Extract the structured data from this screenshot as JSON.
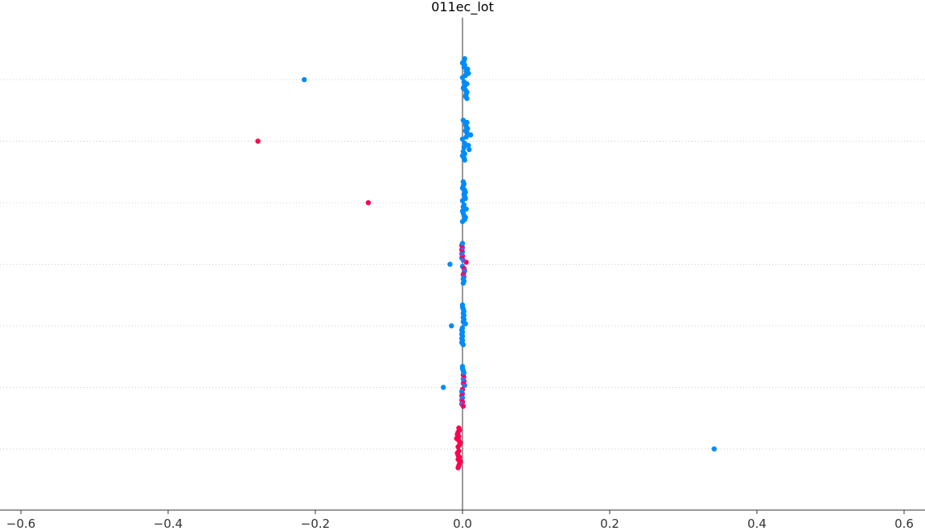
{
  "chart_data": {
    "type": "scatter",
    "title": "011ec_lot",
    "xlabel": "",
    "ylabel": "",
    "xlim": [
      -0.6,
      0.6
    ],
    "x_ticks": [
      "−0.6",
      "−0.4",
      "−0.2",
      "0.0",
      "0.2",
      "0.4",
      "0.6"
    ],
    "x_tick_values": [
      -0.6,
      -0.4,
      -0.2,
      0.0,
      0.2,
      0.4,
      0.6
    ],
    "reference_line_x": 0.0,
    "grid": "horizontal dotted at each row",
    "legend": "none",
    "colors": {
      "low": "#008bfb",
      "high": "#ff0051",
      "mid": "#7a4fd0",
      "zero_line": "#999999",
      "axis": "#333333",
      "grid": "#cccccc"
    },
    "rows": [
      {
        "points": [
          {
            "x": -0.215,
            "color": "low"
          },
          {
            "x": 0.0,
            "color": "low"
          },
          {
            "x": 0.002,
            "color": "low"
          },
          {
            "x": 0.004,
            "color": "low"
          },
          {
            "x": 0.006,
            "color": "low"
          },
          {
            "x": 0.008,
            "color": "low"
          },
          {
            "x": 0.003,
            "color": "low"
          },
          {
            "x": 0.005,
            "color": "low"
          },
          {
            "x": 0.001,
            "color": "low"
          },
          {
            "x": 0.007,
            "color": "low"
          },
          {
            "x": 0.004,
            "color": "low"
          },
          {
            "x": 0.002,
            "color": "low"
          },
          {
            "x": 0.006,
            "color": "low"
          },
          {
            "x": 0.003,
            "color": "low"
          },
          {
            "x": 0.005,
            "color": "low"
          },
          {
            "x": 0.0,
            "color": "low"
          },
          {
            "x": 0.004,
            "color": "low"
          },
          {
            "x": 0.002,
            "color": "low"
          },
          {
            "x": 0.006,
            "color": "low"
          },
          {
            "x": 0.003,
            "color": "low"
          }
        ]
      },
      {
        "points": [
          {
            "x": -0.278,
            "color": "high"
          },
          {
            "x": 0.0,
            "color": "low"
          },
          {
            "x": 0.003,
            "color": "low"
          },
          {
            "x": 0.005,
            "color": "low"
          },
          {
            "x": 0.008,
            "color": "low"
          },
          {
            "x": 0.011,
            "color": "low"
          },
          {
            "x": 0.002,
            "color": "low"
          },
          {
            "x": 0.006,
            "color": "low"
          },
          {
            "x": 0.009,
            "color": "low"
          },
          {
            "x": 0.004,
            "color": "low"
          },
          {
            "x": 0.001,
            "color": "low"
          },
          {
            "x": 0.007,
            "color": "low"
          },
          {
            "x": 0.003,
            "color": "low"
          },
          {
            "x": 0.005,
            "color": "low"
          },
          {
            "x": 0.0,
            "color": "low"
          },
          {
            "x": 0.004,
            "color": "low"
          },
          {
            "x": 0.002,
            "color": "low"
          },
          {
            "x": 0.006,
            "color": "low"
          },
          {
            "x": 0.003,
            "color": "low"
          },
          {
            "x": 0.001,
            "color": "low"
          }
        ]
      },
      {
        "points": [
          {
            "x": -0.128,
            "color": "high"
          },
          {
            "x": 0.0,
            "color": "low"
          },
          {
            "x": 0.002,
            "color": "low"
          },
          {
            "x": 0.004,
            "color": "low"
          },
          {
            "x": 0.001,
            "color": "low"
          },
          {
            "x": 0.003,
            "color": "low"
          },
          {
            "x": 0.005,
            "color": "low"
          },
          {
            "x": 0.002,
            "color": "low"
          },
          {
            "x": 0.0,
            "color": "low"
          },
          {
            "x": 0.004,
            "color": "low"
          },
          {
            "x": 0.001,
            "color": "low"
          },
          {
            "x": 0.003,
            "color": "low"
          },
          {
            "x": 0.002,
            "color": "low"
          },
          {
            "x": 0.0,
            "color": "low"
          },
          {
            "x": 0.004,
            "color": "low"
          },
          {
            "x": 0.001,
            "color": "low"
          },
          {
            "x": 0.003,
            "color": "low"
          },
          {
            "x": 0.002,
            "color": "low"
          },
          {
            "x": 0.0,
            "color": "low"
          },
          {
            "x": 0.001,
            "color": "low"
          }
        ]
      },
      {
        "points": [
          {
            "x": -0.017,
            "color": "low"
          },
          {
            "x": 0.005,
            "color": "high"
          },
          {
            "x": 0.0,
            "color": "low"
          },
          {
            "x": 0.001,
            "color": "mid"
          },
          {
            "x": 0.002,
            "color": "high"
          },
          {
            "x": -0.001,
            "color": "low"
          },
          {
            "x": 0.003,
            "color": "mid"
          },
          {
            "x": 0.0,
            "color": "high"
          },
          {
            "x": 0.002,
            "color": "low"
          },
          {
            "x": -0.001,
            "color": "mid"
          },
          {
            "x": 0.001,
            "color": "high"
          },
          {
            "x": 0.0,
            "color": "low"
          },
          {
            "x": 0.002,
            "color": "mid"
          },
          {
            "x": -0.001,
            "color": "high"
          },
          {
            "x": 0.001,
            "color": "low"
          },
          {
            "x": 0.0,
            "color": "mid"
          },
          {
            "x": 0.002,
            "color": "low"
          },
          {
            "x": -0.001,
            "color": "high"
          },
          {
            "x": 0.001,
            "color": "low"
          },
          {
            "x": 0.0,
            "color": "low"
          }
        ]
      },
      {
        "points": [
          {
            "x": -0.015,
            "color": "low"
          },
          {
            "x": 0.004,
            "color": "low"
          },
          {
            "x": 0.0,
            "color": "low"
          },
          {
            "x": 0.001,
            "color": "low"
          },
          {
            "x": -0.001,
            "color": "low"
          },
          {
            "x": 0.002,
            "color": "low"
          },
          {
            "x": 0.0,
            "color": "low"
          },
          {
            "x": 0.001,
            "color": "low"
          },
          {
            "x": -0.001,
            "color": "low"
          },
          {
            "x": 0.002,
            "color": "low"
          },
          {
            "x": 0.0,
            "color": "low"
          },
          {
            "x": 0.001,
            "color": "low"
          },
          {
            "x": -0.001,
            "color": "low"
          },
          {
            "x": 0.002,
            "color": "low"
          },
          {
            "x": 0.0,
            "color": "low"
          },
          {
            "x": 0.001,
            "color": "low"
          },
          {
            "x": -0.001,
            "color": "low"
          },
          {
            "x": 0.0,
            "color": "low"
          },
          {
            "x": 0.001,
            "color": "low"
          },
          {
            "x": 0.0,
            "color": "low"
          }
        ]
      },
      {
        "points": [
          {
            "x": -0.026,
            "color": "low"
          },
          {
            "x": 0.003,
            "color": "low"
          },
          {
            "x": 0.0,
            "color": "high"
          },
          {
            "x": 0.001,
            "color": "mid"
          },
          {
            "x": -0.001,
            "color": "low"
          },
          {
            "x": 0.002,
            "color": "high"
          },
          {
            "x": 0.0,
            "color": "mid"
          },
          {
            "x": 0.001,
            "color": "low"
          },
          {
            "x": -0.001,
            "color": "high"
          },
          {
            "x": 0.002,
            "color": "mid"
          },
          {
            "x": 0.0,
            "color": "low"
          },
          {
            "x": 0.001,
            "color": "high"
          },
          {
            "x": -0.001,
            "color": "mid"
          },
          {
            "x": 0.002,
            "color": "low"
          },
          {
            "x": 0.0,
            "color": "high"
          },
          {
            "x": 0.001,
            "color": "low"
          },
          {
            "x": -0.001,
            "color": "mid"
          },
          {
            "x": 0.0,
            "color": "low"
          },
          {
            "x": 0.001,
            "color": "high"
          },
          {
            "x": 0.0,
            "color": "low"
          }
        ]
      },
      {
        "points": [
          {
            "x": 0.342,
            "color": "low"
          },
          {
            "x": -0.006,
            "color": "high"
          },
          {
            "x": -0.005,
            "color": "high"
          },
          {
            "x": -0.004,
            "color": "high"
          },
          {
            "x": -0.007,
            "color": "high"
          },
          {
            "x": -0.003,
            "color": "high"
          },
          {
            "x": -0.006,
            "color": "high"
          },
          {
            "x": -0.005,
            "color": "high"
          },
          {
            "x": -0.004,
            "color": "high"
          },
          {
            "x": -0.008,
            "color": "high"
          },
          {
            "x": -0.006,
            "color": "high"
          },
          {
            "x": -0.005,
            "color": "high"
          },
          {
            "x": -0.003,
            "color": "high"
          },
          {
            "x": -0.007,
            "color": "high"
          },
          {
            "x": -0.004,
            "color": "high"
          },
          {
            "x": -0.006,
            "color": "high"
          },
          {
            "x": -0.005,
            "color": "high"
          },
          {
            "x": -0.004,
            "color": "high"
          },
          {
            "x": -0.006,
            "color": "high"
          },
          {
            "x": -0.005,
            "color": "high"
          }
        ]
      }
    ]
  }
}
